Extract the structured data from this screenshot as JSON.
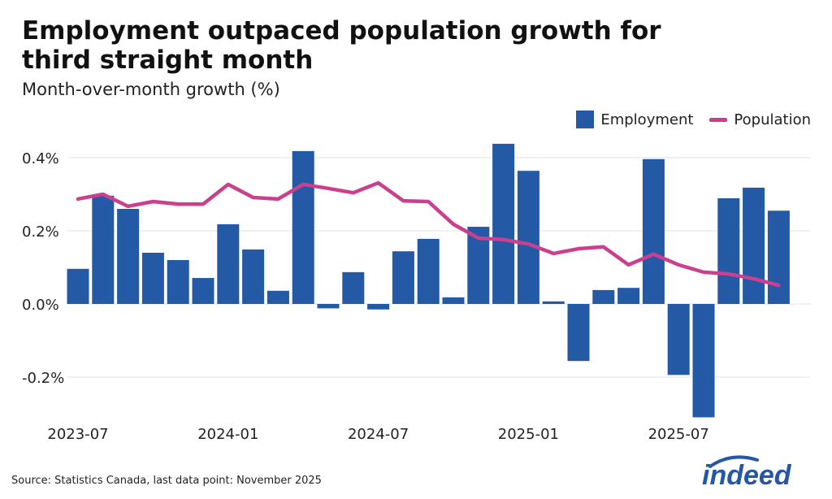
{
  "chart_data": {
    "type": "bar",
    "title": "Employment outpaced population growth for third straight month",
    "subtitle": "Month-over-month growth (%)",
    "xlabel": "",
    "ylabel": "",
    "ylim": [
      -0.31,
      0.45
    ],
    "grid": true,
    "legend_placement": "top-right",
    "categories": [
      "2023-07",
      "2023-08",
      "2023-09",
      "2023-10",
      "2023-11",
      "2023-12",
      "2024-01",
      "2024-02",
      "2024-03",
      "2024-04",
      "2024-05",
      "2024-06",
      "2024-07",
      "2024-08",
      "2024-09",
      "2024-10",
      "2024-11",
      "2024-12",
      "2025-01",
      "2025-02",
      "2025-03",
      "2025-04",
      "2025-05",
      "2025-06",
      "2025-07",
      "2025-08",
      "2025-09",
      "2025-10",
      "2025-11"
    ],
    "x_tick_labels": [
      "2023-07",
      "2024-01",
      "2024-07",
      "2025-01",
      "2025-07"
    ],
    "y_ticks": [
      -0.2,
      0.0,
      0.2,
      0.4
    ],
    "y_tick_labels": [
      "-0.2%",
      "0.0%",
      "0.2%",
      "0.4%"
    ],
    "series": [
      {
        "name": "Employment",
        "type": "bar",
        "color": "#2459a6",
        "values": [
          0.096,
          0.296,
          0.26,
          0.14,
          0.12,
          0.071,
          0.218,
          0.149,
          0.036,
          0.418,
          -0.012,
          0.087,
          -0.015,
          0.144,
          0.178,
          0.018,
          0.211,
          0.438,
          0.364,
          0.007,
          -0.156,
          0.038,
          0.044,
          0.396,
          -0.194,
          -0.31,
          0.289,
          0.318,
          0.255
        ]
      },
      {
        "name": "Population",
        "type": "line",
        "color": "#c9418e",
        "values": [
          0.287,
          0.3,
          0.267,
          0.28,
          0.273,
          0.273,
          0.327,
          0.291,
          0.287,
          0.327,
          0.316,
          0.304,
          0.331,
          0.282,
          0.28,
          0.218,
          0.18,
          0.176,
          0.164,
          0.138,
          0.151,
          0.156,
          0.107,
          0.136,
          0.107,
          0.087,
          0.082,
          0.069,
          0.051
        ]
      }
    ]
  },
  "source": "Source: Statistics Canada, last data point: November 2025",
  "logo_text": "indeed",
  "colors": {
    "gridline": "#e3e3e3",
    "logo": "#2557a7"
  }
}
